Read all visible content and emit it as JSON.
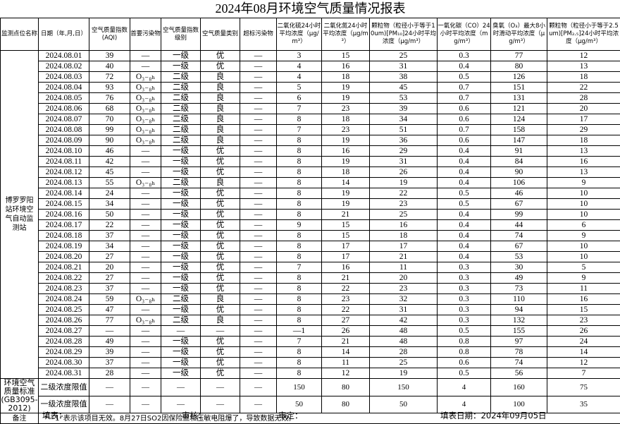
{
  "title": "2024年08月环境空气质量情况报表",
  "header": [
    "监测点位名称",
    "日期（年,月,日）",
    "空气质量指数(AQI)",
    "首要污染物",
    "空气质量指数级别",
    "空气质量类别",
    "超标污染物",
    "二氧化硫24小时平均浓度（μg/m³）",
    "二氧化氮24小时平均浓度（μg/m³）",
    "颗粒物（粒径小于等于10um)[PM₁₀]24小时平均浓度（μg/m³）",
    "一氧化碳（CO）24小时平均浓度（mg/m³）",
    "臭氧（O₃）最大8小时滑动平均浓度（μg/m³）",
    "颗粒物（粒径小于等于2.5um)[PM₂.₅]24小时平均浓度（μg/m³）"
  ],
  "station": "博罗罗阳站环境空气自动监测站",
  "rows": [
    [
      "2024.08.01",
      39,
      "—",
      "一级",
      "优",
      "—",
      3,
      15,
      25,
      0.3,
      77,
      12
    ],
    [
      "2024.08.02",
      40,
      "—",
      "一级",
      "优",
      "—",
      4,
      16,
      31,
      0.4,
      80,
      13
    ],
    [
      "2024.08.03",
      72,
      "O₃₋₈ₕ",
      "二级",
      "良",
      "—",
      4,
      18,
      38,
      0.5,
      126,
      18
    ],
    [
      "2024.08.04",
      93,
      "O₃₋₈ₕ",
      "二级",
      "良",
      "—",
      5,
      19,
      45,
      0.7,
      151,
      22
    ],
    [
      "2024.08.05",
      76,
      "O₃₋₈ₕ",
      "二级",
      "良",
      "—",
      6,
      19,
      53,
      0.7,
      131,
      28
    ],
    [
      "2024.08.06",
      68,
      "O₃₋₈ₕ",
      "二级",
      "良",
      "—",
      7,
      23,
      39,
      0.6,
      121,
      20
    ],
    [
      "2024.08.07",
      70,
      "O₃₋₈ₕ",
      "二级",
      "良",
      "—",
      8,
      18,
      34,
      0.6,
      124,
      17
    ],
    [
      "2024.08.08",
      99,
      "O₃₋₈ₕ",
      "二级",
      "良",
      "—",
      7,
      23,
      51,
      0.7,
      158,
      29
    ],
    [
      "2024.08.09",
      90,
      "O₃₋₈ₕ",
      "二级",
      "良",
      "—",
      8,
      19,
      36,
      0.6,
      147,
      18
    ],
    [
      "2024.08.10",
      46,
      "—",
      "一级",
      "优",
      "—",
      8,
      16,
      29,
      0.4,
      91,
      13
    ],
    [
      "2024.08.11",
      42,
      "—",
      "一级",
      "优",
      "—",
      8,
      19,
      31,
      0.4,
      84,
      16
    ],
    [
      "2024.08.12",
      45,
      "—",
      "一级",
      "优",
      "—",
      8,
      18,
      26,
      0.4,
      90,
      13
    ],
    [
      "2024.08.13",
      55,
      "O₃₋₈ₕ",
      "二级",
      "良",
      "—",
      8,
      14,
      19,
      0.4,
      106,
      9
    ],
    [
      "2024.08.14",
      24,
      "—",
      "一级",
      "优",
      "—",
      8,
      19,
      22,
      0.5,
      46,
      10
    ],
    [
      "2024.08.15",
      34,
      "—",
      "一级",
      "优",
      "—",
      8,
      19,
      23,
      0.5,
      67,
      10
    ],
    [
      "2024.08.16",
      50,
      "—",
      "一级",
      "优",
      "—",
      8,
      21,
      25,
      0.4,
      99,
      10
    ],
    [
      "2024.08.17",
      22,
      "—",
      "一级",
      "优",
      "—",
      9,
      15,
      16,
      0.4,
      44,
      6
    ],
    [
      "2024.08.18",
      37,
      "—",
      "一级",
      "优",
      "—",
      8,
      15,
      18,
      0.4,
      74,
      9
    ],
    [
      "2024.08.19",
      34,
      "—",
      "一级",
      "优",
      "—",
      8,
      17,
      17,
      0.4,
      67,
      10
    ],
    [
      "2024.08.20",
      27,
      "—",
      "一级",
      "优",
      "—",
      8,
      17,
      21,
      0.4,
      53,
      10
    ],
    [
      "2024.08.21",
      20,
      "—",
      "一级",
      "优",
      "—",
      7,
      16,
      11,
      0.3,
      30,
      5
    ],
    [
      "2024.08.22",
      27,
      "—",
      "一级",
      "优",
      "—",
      8,
      21,
      20,
      0.3,
      49,
      9
    ],
    [
      "2024.08.23",
      37,
      "—",
      "一级",
      "优",
      "—",
      8,
      22,
      23,
      0.3,
      73,
      11
    ],
    [
      "2024.08.24",
      59,
      "O₃₋₈ₕ",
      "二级",
      "良",
      "—",
      8,
      23,
      32,
      0.3,
      110,
      16
    ],
    [
      "2024.08.25",
      47,
      "—",
      "一级",
      "优",
      "—",
      8,
      22,
      31,
      0.3,
      94,
      15
    ],
    [
      "2024.08.26",
      77,
      "O₃₋₈ₕ",
      "二级",
      "良",
      "—",
      8,
      27,
      42,
      0.3,
      132,
      23
    ],
    [
      "2024.08.27",
      "—",
      "—",
      "—",
      "—",
      "—",
      "—1",
      26,
      48,
      0.5,
      155,
      26
    ],
    [
      "2024.08.28",
      49,
      "—",
      "一级",
      "优",
      "—",
      7,
      21,
      48,
      0.8,
      97,
      24
    ],
    [
      "2024.08.29",
      39,
      "—",
      "一级",
      "优",
      "—",
      8,
      14,
      28,
      0.8,
      78,
      14
    ],
    [
      "2024.08.30",
      37,
      "—",
      "一级",
      "优",
      "—",
      8,
      11,
      25,
      0.6,
      74,
      12
    ],
    [
      "2024.08.31",
      28,
      "—",
      "一级",
      "优",
      "—",
      8,
      12,
      19,
      0.5,
      56,
      7
    ]
  ],
  "standard": {
    "label": "环境空气质量标准(GB3095-2012)",
    "rows": [
      {
        "name": "二级浓度限值",
        "values": [
          "—",
          "—",
          "—",
          "—",
          "—",
          150,
          80,
          150,
          4,
          160,
          75
        ]
      },
      {
        "name": "一级浓度限值",
        "values": [
          "—",
          "—",
          "—",
          "—",
          "—",
          50,
          80,
          50,
          4,
          100,
          35
        ]
      }
    ]
  },
  "remark": {
    "label": "备注",
    "text": "“—1”表示该项目无效。8月27日SO2因保险丝和压敏电阻爆了，导致数据无效。"
  },
  "footer": {
    "fill": "填表：",
    "review": "审核：",
    "approve": "审定：",
    "date": "填表日期：2024年09月05日"
  }
}
